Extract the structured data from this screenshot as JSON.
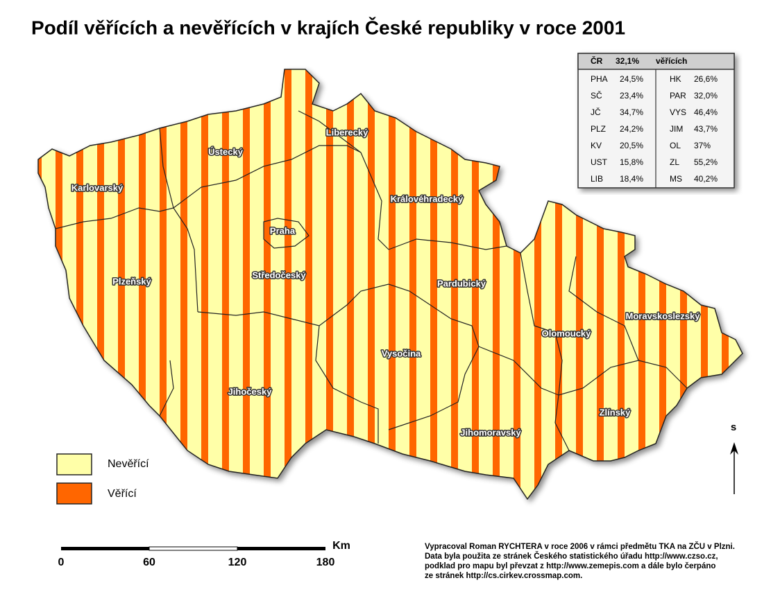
{
  "title": "Podíl věřících a nevěřících v krajích České republiky v roce 2001",
  "table": {
    "header": [
      "ČR",
      "32,1%",
      "věřících"
    ],
    "rows": [
      [
        "PHA",
        "24,5%",
        "HK",
        "26,6%"
      ],
      [
        "SČ",
        "23,4%",
        "PAR",
        "32,0%"
      ],
      [
        "JČ",
        "34,7%",
        "VYS",
        "46,4%"
      ],
      [
        "PLZ",
        "24,2%",
        "JIM",
        "43,7%"
      ],
      [
        "KV",
        "20,5%",
        "OL",
        "37%"
      ],
      [
        "UST",
        "15,8%",
        "ZL",
        "55,2%"
      ],
      [
        "LIB",
        "18,4%",
        "MS",
        "40,2%"
      ]
    ]
  },
  "regions": [
    "Karlovarský",
    "Ústecký",
    "Liberecký",
    "Královéhradecký",
    "Praha",
    "Středočeský",
    "Plzeňský",
    "Pardubický",
    "Vysočina",
    "Jihočeský",
    "Olomoucký",
    "Moravskoslezský",
    "Zlínský",
    "Jihomoravský"
  ],
  "legend": [
    "Nevěřící",
    "Věřící"
  ],
  "scale": {
    "unit": "Km",
    "labels": [
      "0",
      "60",
      "120",
      "180"
    ]
  },
  "north": "S",
  "credits": [
    "Vypracoval Roman RYCHTERA v roce 2006 v rámci předmětu TKA na ZČU v Plzni.",
    "Data byla použita ze stránek Českého statistického úřadu http://www.czso.cz,",
    "podklad pro mapu byl převzat z http://www.zemepis.com a dále bylo čerpáno",
    "ze stránek http://cs.cirkev.crossmap.com."
  ]
}
